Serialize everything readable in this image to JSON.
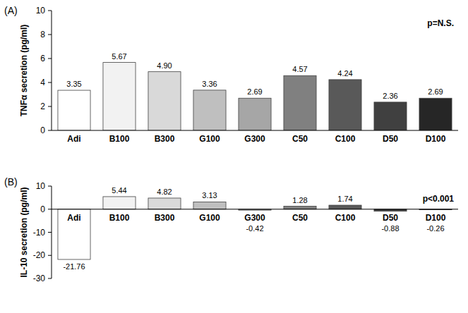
{
  "chart_data": [
    {
      "type": "bar",
      "title": "(A)",
      "y_label": "TNFα secretion (pg/ml)",
      "annotation": "p=N.S.",
      "categories": [
        "Adi",
        "B100",
        "B300",
        "G100",
        "G300",
        "C50",
        "C100",
        "D50",
        "D100"
      ],
      "values": [
        3.35,
        5.67,
        4.9,
        3.36,
        2.69,
        4.57,
        4.24,
        2.36,
        2.69
      ],
      "value_labels": [
        "3.35",
        "5.67",
        "4.90",
        "3.36",
        "2.69",
        "4.57",
        "4.24",
        "2.36",
        "2.69"
      ],
      "colors": [
        "#ffffff",
        "#f2f2f2",
        "#d9d9d9",
        "#bfbfbf",
        "#a6a6a6",
        "#808080",
        "#595959",
        "#404040",
        "#262626"
      ],
      "ylim": [
        0,
        10
      ],
      "yticks": [
        0,
        2,
        4,
        6,
        8,
        10
      ],
      "data_labels": true
    },
    {
      "type": "bar",
      "title": "(B)",
      "y_label": "IL-10 secretion (pg/ml)",
      "annotation": "p<0.001",
      "categories": [
        "Adi",
        "B100",
        "B300",
        "G100",
        "G300",
        "C50",
        "C100",
        "D50",
        "D100"
      ],
      "values": [
        -21.76,
        5.44,
        4.82,
        3.13,
        -0.42,
        1.28,
        1.74,
        -0.88,
        -0.26
      ],
      "colors": [
        "#ffffff",
        "#f2f2f2",
        "#d9d9d9",
        "#bfbfbf",
        "#a6a6a6",
        "#808080",
        "#595959",
        "#404040",
        "#262626"
      ],
      "ylim": [
        -30,
        10
      ],
      "yticks": [
        -30,
        -20,
        -10,
        0,
        10
      ],
      "data_labels": true
    }
  ]
}
